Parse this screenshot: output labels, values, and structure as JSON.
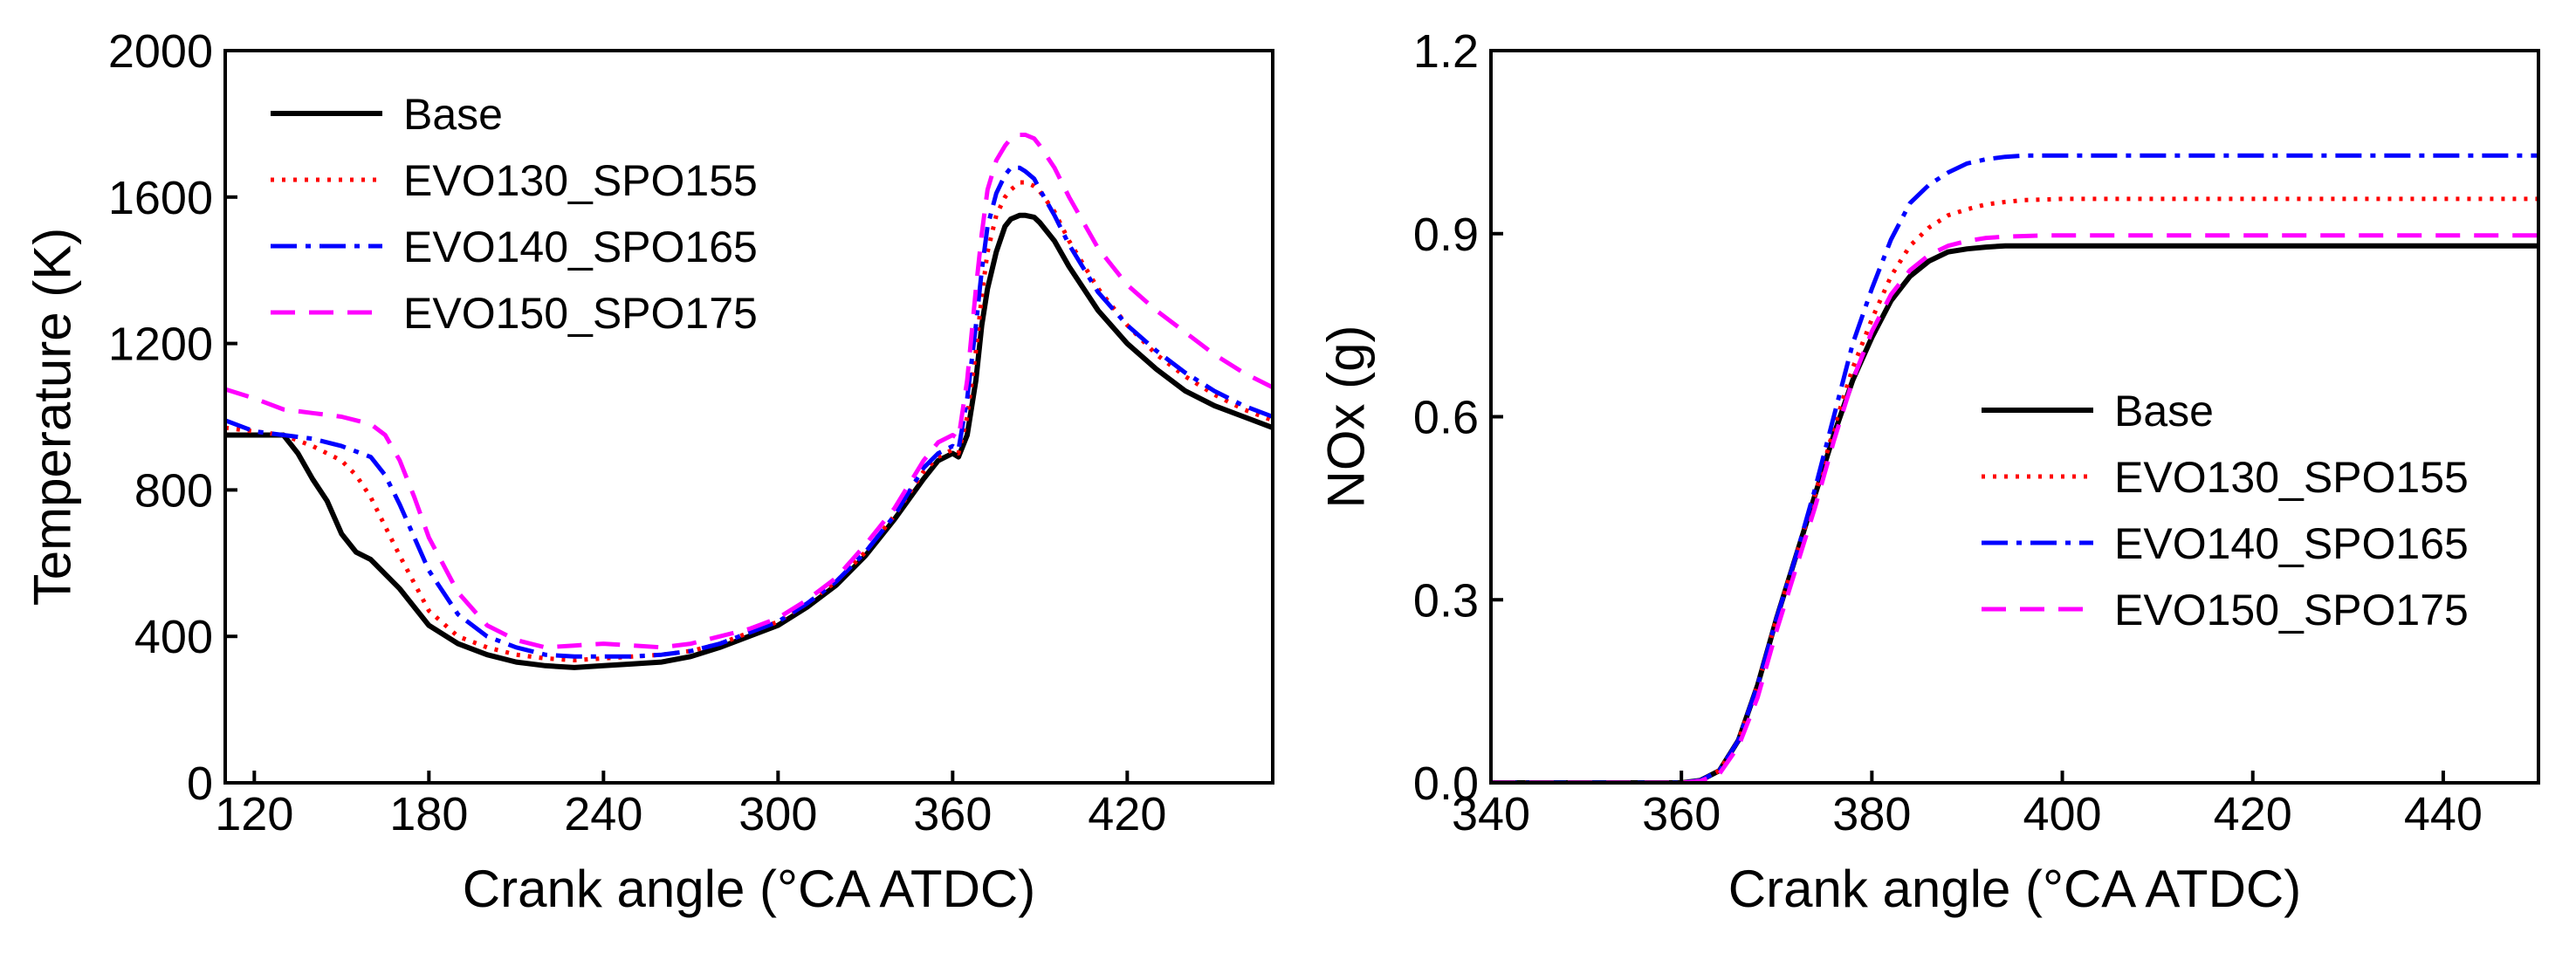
{
  "chart_data": [
    {
      "type": "line",
      "xlabel": "Crank angle (°CA ATDC)",
      "ylabel": "Temperature (K)",
      "xlim": [
        110,
        470
      ],
      "ylim": [
        0,
        2000
      ],
      "xticks": [
        120,
        180,
        240,
        300,
        360,
        420
      ],
      "yticks": [
        0,
        400,
        800,
        1200,
        1600,
        2000
      ],
      "grid": false,
      "legend_position": "top-left",
      "series": [
        {
          "name": "Base",
          "color": "#000000",
          "style": "solid",
          "x": [
            110,
            120,
            130,
            135,
            140,
            145,
            150,
            155,
            160,
            170,
            180,
            190,
            200,
            210,
            220,
            230,
            240,
            250,
            260,
            270,
            280,
            290,
            300,
            310,
            320,
            330,
            340,
            350,
            355,
            360,
            362,
            365,
            368,
            370,
            372,
            375,
            378,
            380,
            383,
            385,
            388,
            390,
            395,
            400,
            410,
            420,
            430,
            440,
            450,
            460,
            470
          ],
          "y": [
            950,
            950,
            950,
            900,
            830,
            770,
            680,
            630,
            610,
            530,
            430,
            380,
            350,
            330,
            320,
            315,
            320,
            325,
            330,
            345,
            370,
            400,
            430,
            480,
            540,
            620,
            720,
            830,
            880,
            900,
            890,
            950,
            1100,
            1250,
            1350,
            1450,
            1520,
            1540,
            1550,
            1550,
            1545,
            1530,
            1480,
            1410,
            1290,
            1200,
            1130,
            1070,
            1030,
            1000,
            970
          ]
        },
        {
          "name": "EVO130_SPO155",
          "color": "#ff0000",
          "style": "dotted",
          "x": [
            110,
            120,
            130,
            140,
            150,
            155,
            160,
            170,
            180,
            190,
            200,
            210,
            220,
            230,
            240,
            250,
            260,
            270,
            280,
            290,
            300,
            310,
            320,
            330,
            340,
            350,
            355,
            360,
            362,
            365,
            368,
            370,
            372,
            375,
            378,
            380,
            383,
            385,
            388,
            390,
            395,
            400,
            410,
            420,
            430,
            440,
            450,
            460,
            470
          ],
          "y": [
            970,
            960,
            950,
            920,
            880,
            840,
            780,
            620,
            470,
            400,
            370,
            350,
            340,
            335,
            340,
            345,
            350,
            360,
            380,
            410,
            440,
            490,
            550,
            630,
            730,
            850,
            890,
            910,
            900,
            1000,
            1180,
            1330,
            1450,
            1550,
            1600,
            1620,
            1640,
            1640,
            1630,
            1615,
            1560,
            1480,
            1350,
            1250,
            1170,
            1110,
            1060,
            1020,
            990
          ]
        },
        {
          "name": "EVO140_SPO165",
          "color": "#0000ff",
          "style": "dashdot",
          "x": [
            110,
            120,
            130,
            140,
            150,
            160,
            165,
            170,
            180,
            190,
            200,
            210,
            220,
            230,
            240,
            250,
            260,
            270,
            280,
            290,
            300,
            310,
            320,
            330,
            340,
            350,
            355,
            360,
            362,
            365,
            368,
            370,
            372,
            375,
            378,
            380,
            383,
            385,
            388,
            390,
            395,
            400,
            410,
            420,
            430,
            440,
            450,
            460,
            470
          ],
          "y": [
            990,
            960,
            950,
            940,
            920,
            890,
            840,
            760,
            580,
            460,
            400,
            370,
            350,
            345,
            345,
            345,
            350,
            360,
            380,
            410,
            440,
            490,
            550,
            630,
            730,
            860,
            900,
            920,
            910,
            1050,
            1250,
            1400,
            1520,
            1610,
            1660,
            1680,
            1680,
            1670,
            1650,
            1620,
            1550,
            1470,
            1340,
            1250,
            1180,
            1120,
            1070,
            1030,
            1000
          ]
        },
        {
          "name": "EVO150_SPO175",
          "color": "#ff00ff",
          "style": "dashed",
          "x": [
            110,
            120,
            130,
            140,
            150,
            160,
            165,
            170,
            175,
            180,
            190,
            200,
            210,
            220,
            230,
            240,
            250,
            260,
            270,
            280,
            290,
            300,
            310,
            320,
            330,
            340,
            350,
            355,
            360,
            362,
            365,
            368,
            370,
            372,
            375,
            378,
            380,
            383,
            385,
            388,
            390,
            395,
            400,
            410,
            420,
            430,
            440,
            450,
            460,
            470
          ],
          "y": [
            1075,
            1050,
            1020,
            1010,
            1000,
            980,
            950,
            880,
            780,
            670,
            520,
            430,
            390,
            370,
            375,
            380,
            375,
            370,
            380,
            400,
            420,
            450,
            500,
            560,
            650,
            750,
            880,
            930,
            950,
            940,
            1100,
            1350,
            1500,
            1620,
            1700,
            1740,
            1760,
            1770,
            1770,
            1760,
            1740,
            1680,
            1600,
            1460,
            1360,
            1290,
            1230,
            1170,
            1120,
            1080
          ]
        }
      ]
    },
    {
      "type": "line",
      "xlabel": "Crank angle (°CA ATDC)",
      "ylabel": "NOx (g)",
      "xlim": [
        340,
        450
      ],
      "ylim": [
        0.0,
        1.2
      ],
      "xticks": [
        340,
        360,
        380,
        400,
        420,
        440
      ],
      "yticks": [
        "0.0",
        "0.3",
        "0.6",
        "0.9",
        "1.2"
      ],
      "grid": false,
      "legend_position": "right-center",
      "series": [
        {
          "name": "Base",
          "color": "#000000",
          "style": "solid",
          "x": [
            340,
            360,
            362,
            364,
            366,
            368,
            370,
            372,
            374,
            376,
            378,
            380,
            382,
            384,
            386,
            388,
            390,
            392,
            394,
            396,
            398,
            400,
            405,
            410,
            420,
            430,
            440,
            450
          ],
          "y": [
            0,
            0,
            0.004,
            0.02,
            0.07,
            0.16,
            0.27,
            0.37,
            0.47,
            0.57,
            0.66,
            0.73,
            0.79,
            0.83,
            0.855,
            0.87,
            0.875,
            0.878,
            0.88,
            0.88,
            0.88,
            0.88,
            0.88,
            0.88,
            0.88,
            0.88,
            0.88,
            0.88
          ]
        },
        {
          "name": "EVO130_SPO155",
          "color": "#ff0000",
          "style": "dotted",
          "x": [
            340,
            360,
            362,
            364,
            366,
            368,
            370,
            372,
            374,
            376,
            378,
            380,
            382,
            384,
            386,
            388,
            390,
            392,
            394,
            396,
            398,
            400,
            405,
            410,
            420,
            430,
            440,
            450
          ],
          "y": [
            0,
            0,
            0.004,
            0.02,
            0.07,
            0.16,
            0.27,
            0.37,
            0.47,
            0.58,
            0.68,
            0.76,
            0.83,
            0.88,
            0.91,
            0.93,
            0.94,
            0.948,
            0.952,
            0.955,
            0.956,
            0.957,
            0.957,
            0.957,
            0.957,
            0.957,
            0.957,
            0.957
          ]
        },
        {
          "name": "EVO140_SPO165",
          "color": "#0000ff",
          "style": "dashdot",
          "x": [
            340,
            360,
            362,
            364,
            366,
            368,
            370,
            372,
            374,
            376,
            378,
            380,
            382,
            384,
            386,
            388,
            390,
            392,
            394,
            396,
            398,
            400,
            405,
            410,
            420,
            430,
            440,
            450
          ],
          "y": [
            0,
            0,
            0.004,
            0.02,
            0.07,
            0.16,
            0.27,
            0.37,
            0.48,
            0.6,
            0.72,
            0.81,
            0.89,
            0.95,
            0.98,
            1.0,
            1.015,
            1.022,
            1.026,
            1.028,
            1.028,
            1.028,
            1.028,
            1.028,
            1.028,
            1.028,
            1.028,
            1.028
          ]
        },
        {
          "name": "EVO150_SPO175",
          "color": "#ff00ff",
          "style": "dashed",
          "x": [
            340,
            360,
            362,
            364,
            366,
            368,
            370,
            372,
            374,
            376,
            378,
            380,
            382,
            384,
            386,
            388,
            390,
            392,
            394,
            396,
            398,
            400,
            405,
            410,
            420,
            430,
            440,
            450
          ],
          "y": [
            0,
            0,
            0.003,
            0.015,
            0.06,
            0.14,
            0.25,
            0.35,
            0.45,
            0.56,
            0.66,
            0.74,
            0.8,
            0.84,
            0.865,
            0.88,
            0.888,
            0.893,
            0.895,
            0.896,
            0.897,
            0.897,
            0.897,
            0.897,
            0.897,
            0.897,
            0.897,
            0.897
          ]
        }
      ]
    }
  ]
}
